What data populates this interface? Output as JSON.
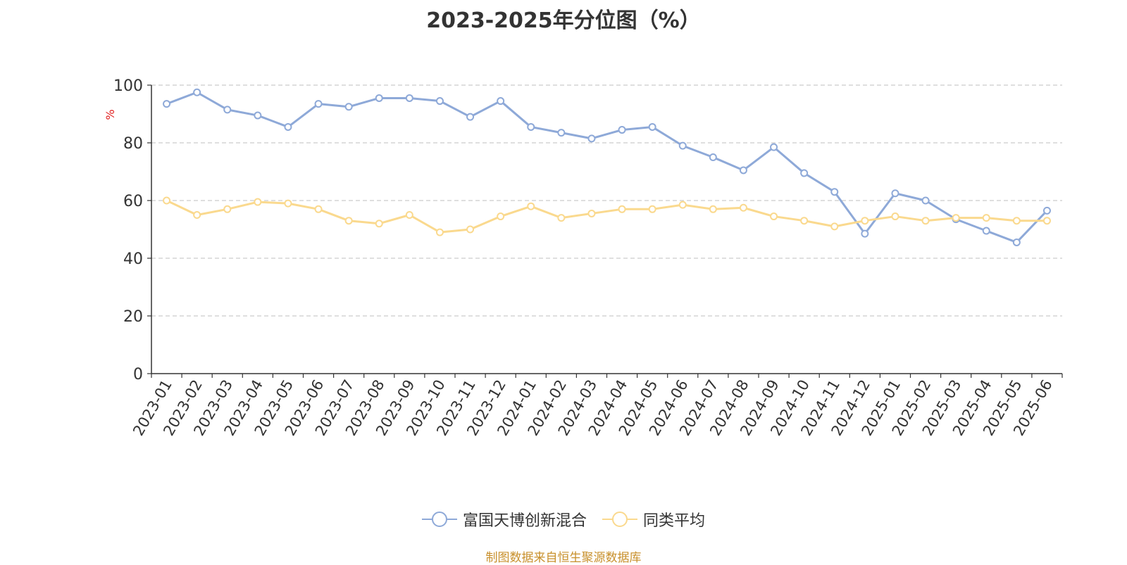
{
  "title": "2023-2025年分位图（%）",
  "source": "制图数据来自恒生聚源数据库",
  "chart_data": {
    "type": "line",
    "title": "2023-2025年分位图（%）",
    "ylabel": "%",
    "ylim": [
      0,
      100
    ],
    "yticks": [
      0,
      20,
      40,
      60,
      80,
      100
    ],
    "grid": true,
    "legend_position": "bottom",
    "categories": [
      "2023-01",
      "2023-02",
      "2023-03",
      "2023-04",
      "2023-05",
      "2023-06",
      "2023-07",
      "2023-08",
      "2023-09",
      "2023-10",
      "2023-11",
      "2023-12",
      "2024-01",
      "2024-02",
      "2024-03",
      "2024-04",
      "2024-05",
      "2024-06",
      "2024-07",
      "2024-08",
      "2024-09",
      "2024-10",
      "2024-11",
      "2024-12",
      "2025-01",
      "2025-02",
      "2025-03",
      "2025-04",
      "2025-05",
      "2025-06"
    ],
    "series": [
      {
        "name": "富国天博创新混合",
        "color": "#8ea9d8",
        "values": [
          93.5,
          97.5,
          91.5,
          89.5,
          85.5,
          93.5,
          92.5,
          95.5,
          95.5,
          94.5,
          89.0,
          94.5,
          85.5,
          83.5,
          81.5,
          84.5,
          85.5,
          79.0,
          75.0,
          70.5,
          78.5,
          69.5,
          63.0,
          48.5,
          62.5,
          60.0,
          53.5,
          49.5,
          45.5,
          56.5
        ]
      },
      {
        "name": "同类平均",
        "color": "#fad98e",
        "values": [
          60.0,
          55.0,
          57.0,
          59.5,
          59.0,
          57.0,
          53.0,
          52.0,
          55.0,
          49.0,
          50.0,
          54.5,
          58.0,
          54.0,
          55.5,
          57.0,
          57.0,
          58.5,
          57.0,
          57.5,
          54.5,
          53.0,
          51.0,
          53.0,
          54.5,
          53.0,
          54.0,
          54.0,
          53.0,
          53.0
        ]
      }
    ]
  }
}
